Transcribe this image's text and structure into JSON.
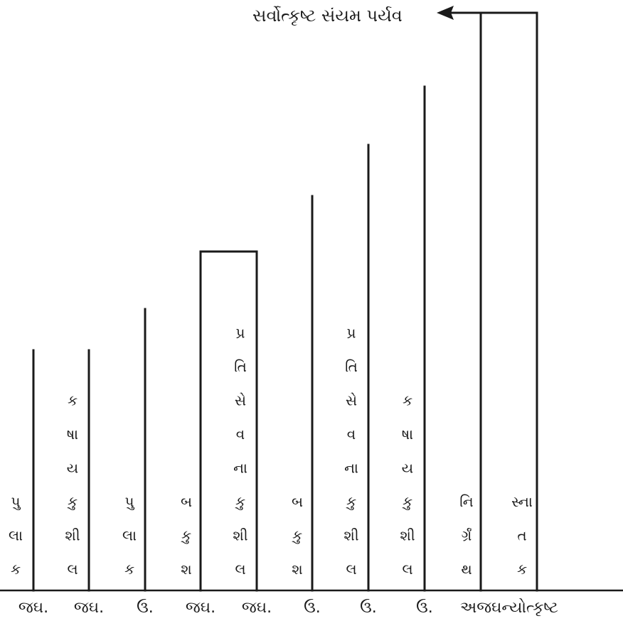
{
  "title": "સર્વોત્કૃષ્ટ સંયમ પર્યવ",
  "columns": [
    {
      "id": "pulak-1",
      "chars": [
        "પુ",
        "લા",
        "ક"
      ]
    },
    {
      "id": "kashay-1",
      "chars": [
        "ક",
        "ષા",
        "ય",
        "કુ",
        "શી",
        "લ"
      ]
    },
    {
      "id": "pulak-2",
      "chars": [
        "પુ",
        "લા",
        "ક"
      ]
    },
    {
      "id": "bakush-1",
      "chars": [
        "બ",
        "કુ",
        "શ"
      ]
    },
    {
      "id": "pratisevana-1",
      "chars": [
        "પ્ર",
        "તિ",
        "સે",
        "વ",
        "ના",
        "કુ",
        "શી",
        "લ"
      ]
    },
    {
      "id": "bakush-2",
      "chars": [
        "બ",
        "કુ",
        "શ"
      ]
    },
    {
      "id": "pratisevana-2",
      "chars": [
        "પ્ર",
        "તિ",
        "સે",
        "વ",
        "ના",
        "કુ",
        "શી",
        "લ"
      ]
    },
    {
      "id": "kashay-2",
      "chars": [
        "ક",
        "ષા",
        "ય",
        "કુ",
        "શી",
        "લ"
      ]
    },
    {
      "id": "nirgranth",
      "chars": [
        "નિ",
        "ર્ગ્રં",
        "થ"
      ]
    },
    {
      "id": "snatak",
      "chars": [
        "સ્ના",
        "ત",
        "ક"
      ]
    }
  ],
  "bottom_labels": [
    "જઘ.",
    "જઘ.",
    "ઉ.",
    "જઘ.",
    "જઘ.",
    "ઉ.",
    "ઉ.",
    "ઉ.",
    "અજઘન્યોત્કૃષ્ટ"
  ]
}
